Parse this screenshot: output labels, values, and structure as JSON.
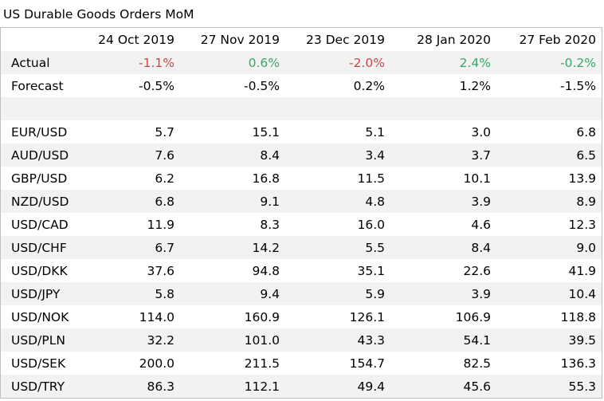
{
  "chart_data": {
    "type": "table",
    "title": "US Durable Goods Orders MoM",
    "columns": [
      "24 Oct 2019",
      "27 Nov 2019",
      "23 Dec 2019",
      "28 Jan 2020",
      "27 Feb 2020"
    ],
    "actual": {
      "label": "Actual",
      "values": [
        "-1.1%",
        "0.6%",
        "-2.0%",
        "2.4%",
        "-0.2%"
      ],
      "colors": [
        "#d04545",
        "#3aa66a",
        "#d04545",
        "#3aa66a",
        "#3aa66a"
      ]
    },
    "forecast": {
      "label": "Forecast",
      "values": [
        "-0.5%",
        "-0.5%",
        "0.2%",
        "1.2%",
        "-1.5%"
      ]
    },
    "rows": [
      {
        "label": "EUR/USD",
        "values": [
          "5.7",
          "15.1",
          "5.1",
          "3.0",
          "6.8"
        ]
      },
      {
        "label": "AUD/USD",
        "values": [
          "7.6",
          "8.4",
          "3.4",
          "3.7",
          "6.5"
        ]
      },
      {
        "label": "GBP/USD",
        "values": [
          "6.2",
          "16.8",
          "11.5",
          "10.1",
          "13.9"
        ]
      },
      {
        "label": "NZD/USD",
        "values": [
          "6.8",
          "9.1",
          "4.8",
          "3.9",
          "8.9"
        ]
      },
      {
        "label": "USD/CAD",
        "values": [
          "11.9",
          "8.3",
          "16.0",
          "4.6",
          "12.3"
        ]
      },
      {
        "label": "USD/CHF",
        "values": [
          "6.7",
          "14.2",
          "5.5",
          "8.4",
          "9.0"
        ]
      },
      {
        "label": "USD/DKK",
        "values": [
          "37.6",
          "94.8",
          "35.1",
          "22.6",
          "41.9"
        ]
      },
      {
        "label": "USD/JPY",
        "values": [
          "5.8",
          "9.4",
          "5.9",
          "3.9",
          "10.4"
        ]
      },
      {
        "label": "USD/NOK",
        "values": [
          "114.0",
          "160.9",
          "126.1",
          "106.9",
          "118.8"
        ]
      },
      {
        "label": "USD/PLN",
        "values": [
          "32.2",
          "101.0",
          "43.3",
          "54.1",
          "39.5"
        ]
      },
      {
        "label": "USD/SEK",
        "values": [
          "200.0",
          "211.5",
          "154.7",
          "82.5",
          "136.3"
        ]
      },
      {
        "label": "USD/TRY",
        "values": [
          "86.3",
          "112.1",
          "49.4",
          "45.6",
          "55.3"
        ]
      }
    ]
  }
}
